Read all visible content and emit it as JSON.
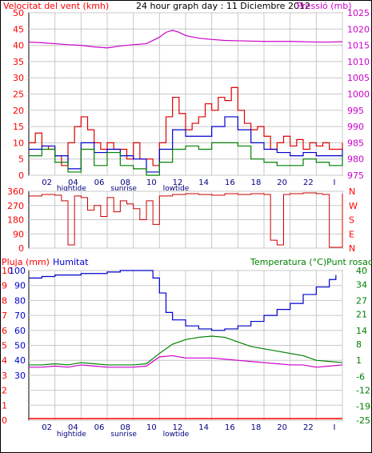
{
  "colors": {
    "wind": "#ff0000",
    "gust": "#dd0000",
    "pressure": "#cc00cc",
    "direction": "#cc0000",
    "rain": "#ff0000",
    "humidity": "#0000cc",
    "temperature": "#008000",
    "dewpoint": "#cc00cc",
    "grid": "#c8c8c8",
    "axis_left": "#ff0000",
    "axis_right": "#cc00cc",
    "axis_humidity": "#0000cc",
    "axis_temp": "#008000",
    "frame": "#000000",
    "wind_blue": "#0000cc",
    "wind_green": "#008000"
  },
  "chart_data": [
    {
      "type": "line",
      "title": "24 hour graph day : 11 Diciembre 2012",
      "y_left_label": "Velocitat del vent (kmh)",
      "y_right_label": "Pressió (mb)",
      "x_tick_labels": [
        "02",
        "04",
        "06",
        "08",
        "10",
        "12",
        "14",
        "16",
        "18",
        "20",
        "22",
        "I"
      ],
      "x_markers": [
        "hightide",
        "sunrise",
        "lowtide"
      ],
      "x_hours": [
        2,
        4,
        6,
        8,
        10,
        12,
        14,
        16,
        18,
        20,
        22,
        24
      ],
      "x_range_hours": [
        0,
        24
      ],
      "y_left_ticks": [
        0,
        5,
        10,
        15,
        20,
        25,
        30,
        35,
        40,
        45,
        50
      ],
      "y_left_range": [
        0,
        50
      ],
      "y_right_ticks": [
        975,
        980,
        985,
        990,
        995,
        1000,
        1005,
        1010,
        1015,
        1020,
        1025
      ],
      "y_right_range": [
        975,
        1025
      ],
      "grid": true,
      "series": [
        {
          "key": "pressure",
          "axis": "right",
          "x": [
            0,
            1,
            2,
            3,
            4,
            5,
            6,
            7,
            8,
            9,
            10,
            10.5,
            11,
            11.5,
            12,
            13,
            14,
            15,
            16,
            17,
            18,
            19,
            20,
            21,
            22,
            23,
            24
          ],
          "values": [
            1016,
            1015.8,
            1015.5,
            1015.2,
            1015,
            1014.5,
            1014.2,
            1014.8,
            1015.2,
            1015.5,
            1017.5,
            1019,
            1019.6,
            1019,
            1018,
            1017.2,
            1016.8,
            1016.5,
            1016.4,
            1016.3,
            1016.2,
            1016.2,
            1016.2,
            1016.1,
            1016,
            1016,
            1016.1
          ]
        },
        {
          "key": "gust",
          "axis": "left",
          "x": [
            0,
            0.5,
            1,
            1.5,
            2,
            2.5,
            3,
            3.5,
            4,
            4.5,
            5,
            5.5,
            6,
            6.5,
            7,
            7.5,
            8,
            8.5,
            9,
            9.5,
            10,
            10.5,
            11,
            11.5,
            12,
            12.5,
            13,
            13.5,
            14,
            14.5,
            15,
            15.5,
            16,
            16.5,
            17,
            17.5,
            18,
            18.5,
            19,
            19.5,
            20,
            20.5,
            21,
            21.5,
            22,
            22.5,
            23,
            23.5,
            24
          ],
          "values": [
            10,
            13,
            9,
            8,
            6,
            3,
            10,
            15,
            18,
            14,
            10,
            8,
            10,
            8,
            8,
            5,
            10,
            5,
            5,
            3,
            10,
            18,
            24,
            19,
            14,
            16,
            18,
            22,
            20,
            24,
            23,
            27,
            20,
            16,
            14,
            15,
            12,
            8,
            10,
            12,
            9,
            11,
            8,
            10,
            9,
            10,
            8,
            8,
            10
          ]
        },
        {
          "key": "wind_avg",
          "axis": "left",
          "x": [
            0,
            1,
            2,
            3,
            4,
            5,
            6,
            7,
            8,
            9,
            10,
            11,
            12,
            13,
            14,
            15,
            16,
            17,
            18,
            19,
            20,
            21,
            22,
            23,
            24
          ],
          "values": [
            8,
            9,
            6,
            2,
            10,
            7,
            8,
            6,
            5,
            1,
            8,
            14,
            12,
            12,
            15,
            18,
            14,
            10,
            8,
            7,
            6,
            7,
            6,
            6,
            8
          ]
        },
        {
          "key": "wind_min",
          "axis": "left",
          "x": [
            0,
            1,
            2,
            3,
            4,
            5,
            6,
            7,
            8,
            9,
            10,
            11,
            12,
            13,
            14,
            15,
            16,
            17,
            18,
            19,
            20,
            21,
            22,
            23,
            24
          ],
          "values": [
            6,
            8,
            4,
            1,
            8,
            3,
            7,
            3,
            2,
            0,
            4,
            8,
            9,
            8,
            10,
            10,
            9,
            5,
            4,
            3,
            3,
            5,
            4,
            3,
            6
          ]
        }
      ]
    },
    {
      "type": "scatter",
      "title": "",
      "y_right_labels": [
        "N",
        "W",
        "S",
        "E",
        "N"
      ],
      "y_left_ticks": [
        0,
        90,
        180,
        270,
        360
      ],
      "y_range": [
        0,
        360
      ],
      "x_range_hours": [
        0,
        24
      ],
      "grid": true,
      "series": [
        {
          "key": "direction",
          "x": [
            0,
            1,
            2,
            2.5,
            3,
            3.5,
            4,
            4.5,
            5,
            5.5,
            6,
            6.5,
            7,
            7.5,
            8,
            8.5,
            9,
            9.5,
            10,
            11,
            12,
            13,
            14,
            15,
            16,
            17,
            18,
            18.5,
            19,
            19.5,
            20,
            21,
            22,
            22.5,
            23,
            24
          ],
          "values": [
            330,
            340,
            335,
            300,
            20,
            330,
            320,
            240,
            270,
            200,
            320,
            230,
            300,
            280,
            250,
            180,
            300,
            150,
            330,
            340,
            345,
            340,
            335,
            345,
            340,
            345,
            340,
            50,
            20,
            340,
            345,
            350,
            345,
            340,
            5,
            345
          ]
        }
      ]
    },
    {
      "type": "line",
      "title": "",
      "y_left_label": "Pluja (mm)",
      "y_left2_label": "Humitat",
      "y_right_label": "Temperatura (°C)Punt rosada",
      "x_tick_labels": [
        "02",
        "04",
        "06",
        "08",
        "10",
        "12",
        "14",
        "16",
        "18",
        "20",
        "22",
        "I"
      ],
      "x_markers": [
        "hightide",
        "sunrise",
        "lowtide"
      ],
      "x_range_hours": [
        0,
        24
      ],
      "y_rain_ticks": [
        0,
        1,
        2,
        3,
        4,
        5,
        6,
        7,
        8,
        9,
        10
      ],
      "y_humidity_ticks": [
        30,
        40,
        50,
        60,
        70,
        80,
        90,
        100
      ],
      "y_temp_ticks": [
        -25,
        -19,
        -12,
        -6,
        1,
        8,
        14,
        21,
        27,
        34,
        40
      ],
      "y_temp_range": [
        -25,
        40
      ],
      "grid": true,
      "series": [
        {
          "key": "humidity",
          "axis": "humidity",
          "x": [
            0,
            1,
            2,
            3,
            4,
            5,
            6,
            7,
            8,
            9,
            9.5,
            10,
            10.5,
            11,
            12,
            13,
            14,
            15,
            16,
            17,
            18,
            19,
            20,
            21,
            22,
            23,
            23.5
          ],
          "values": [
            95,
            96,
            97,
            97,
            98,
            98,
            99,
            100,
            100,
            100,
            95,
            85,
            72,
            67,
            63,
            61,
            60,
            61,
            63,
            66,
            70,
            74,
            78,
            84,
            89,
            94,
            97
          ]
        },
        {
          "key": "temperature",
          "axis": "temp",
          "x": [
            0,
            1,
            2,
            3,
            4,
            5,
            6,
            7,
            8,
            9,
            10,
            11,
            12,
            13,
            14,
            15,
            16,
            17,
            18,
            19,
            20,
            21,
            22,
            23,
            24
          ],
          "values": [
            -1,
            -1,
            -0.5,
            -1,
            0,
            -0.5,
            -1,
            -1,
            -1,
            -0.5,
            4,
            8,
            10,
            11,
            11.5,
            11,
            9,
            7,
            6,
            5,
            4,
            3,
            1,
            0.5,
            0
          ]
        },
        {
          "key": "dewpoint",
          "axis": "temp",
          "x": [
            0,
            1,
            2,
            3,
            4,
            5,
            6,
            7,
            8,
            9,
            10,
            11,
            12,
            13,
            14,
            15,
            16,
            17,
            18,
            19,
            20,
            21,
            22,
            23,
            24
          ],
          "values": [
            -2,
            -2,
            -1.5,
            -2,
            -1,
            -1.5,
            -2,
            -2,
            -2,
            -1.5,
            2.5,
            3,
            2,
            2,
            2,
            1.5,
            1,
            0.5,
            0,
            -0.5,
            -1,
            -1,
            -2,
            -1.5,
            -1
          ]
        },
        {
          "key": "rain",
          "axis": "rain",
          "x": [
            0,
            24
          ],
          "values": [
            0,
            0
          ]
        }
      ]
    }
  ]
}
